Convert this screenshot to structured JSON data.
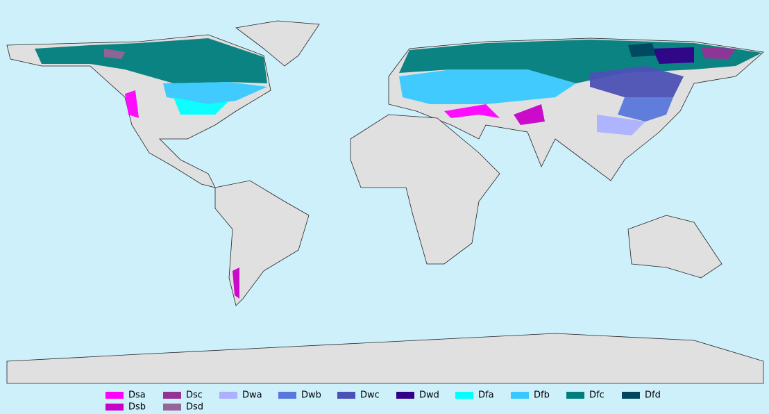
{
  "legend": [
    {
      "label": "Dsa",
      "color": "#ff00ff"
    },
    {
      "label": "Dsb",
      "color": "#c800c8"
    },
    {
      "label": "Dsc",
      "color": "#963296"
    },
    {
      "label": "Dsd",
      "color": "#966496"
    },
    {
      "label": "Dwa",
      "color": "#abb1ff"
    },
    {
      "label": "Dwb",
      "color": "#5a77db"
    },
    {
      "label": "Dwc",
      "color": "#4c51b5"
    },
    {
      "label": "Dwd",
      "color": "#320087"
    },
    {
      "label": "Dfa",
      "color": "#00ffff"
    },
    {
      "label": "Dfb",
      "color": "#37c8ff"
    },
    {
      "label": "Dfc",
      "color": "#007d7d"
    },
    {
      "label": "Dfd",
      "color": "#00465f"
    }
  ]
}
